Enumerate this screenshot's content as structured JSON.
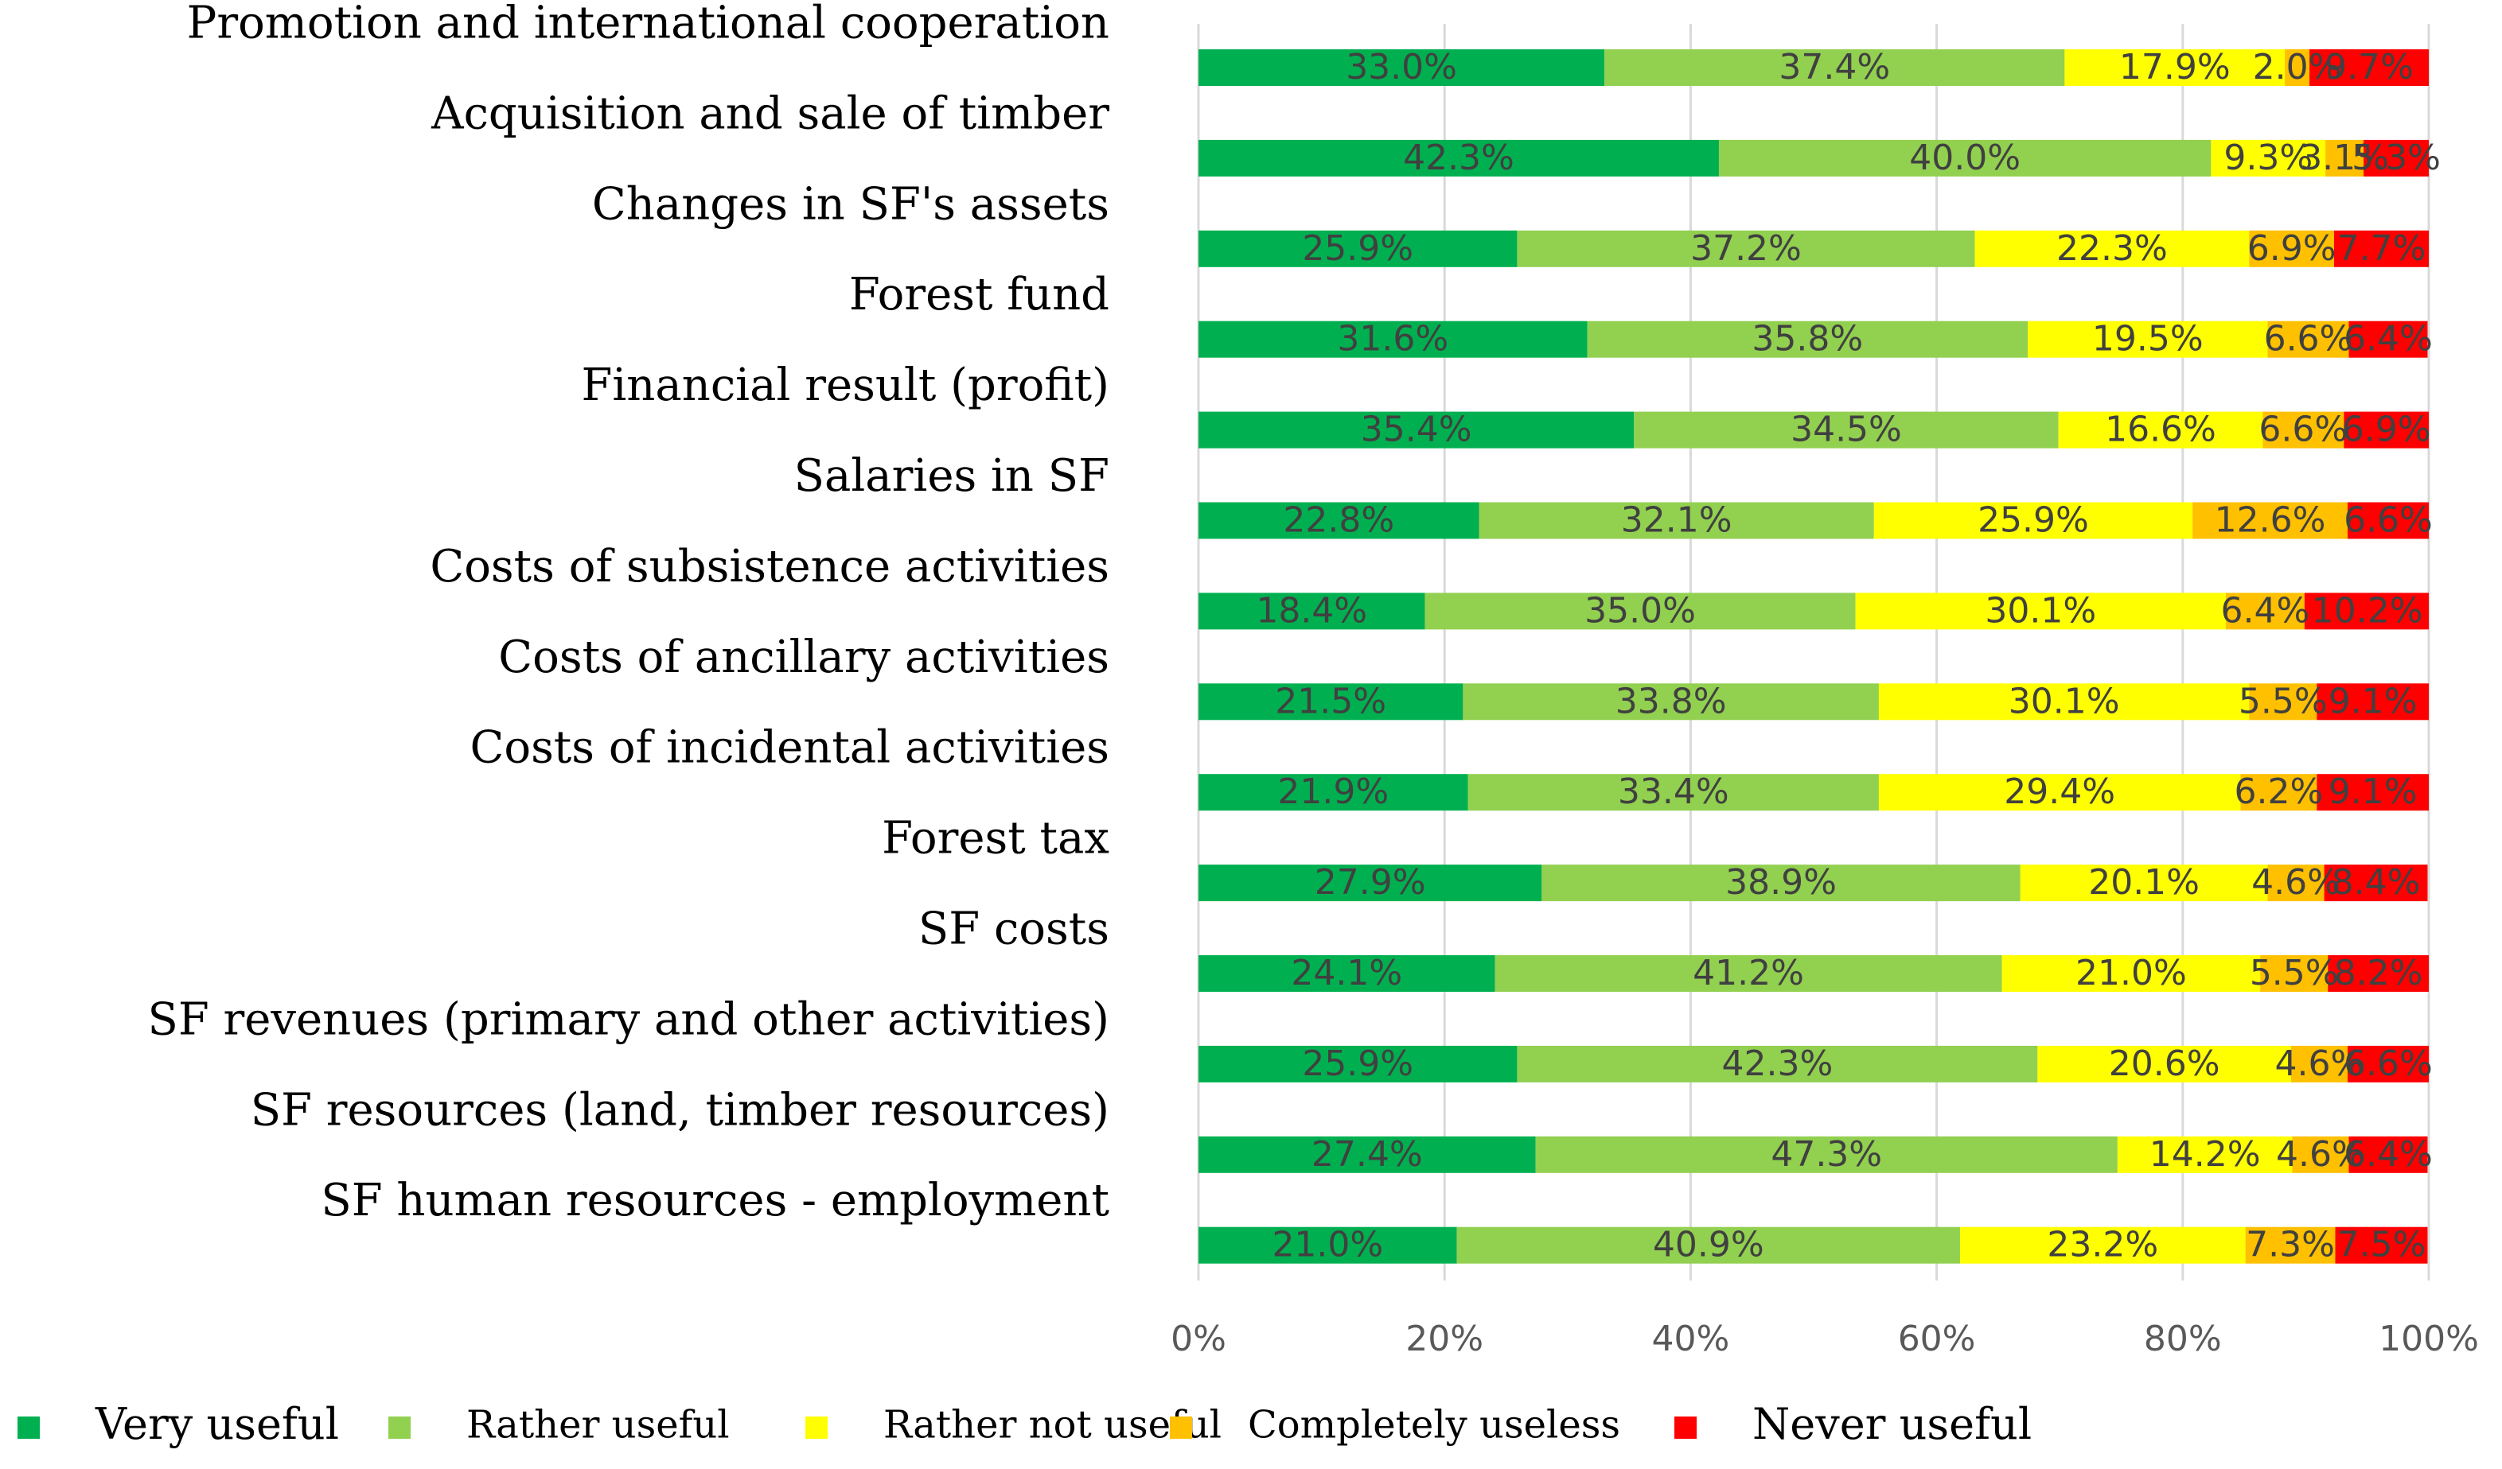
{
  "chart_data": {
    "type": "bar",
    "orientation": "horizontal",
    "stacked": "percent",
    "title": "",
    "xlabel": "",
    "ylabel": "",
    "xlim": [
      0,
      100
    ],
    "x_ticks": [
      "0%",
      "20%",
      "40%",
      "60%",
      "80%",
      "100%"
    ],
    "grid": "vertical",
    "legend_position": "bottom",
    "categories": [
      "Promotion and international cooperation",
      "Acquisition and sale of timber",
      "Changes in SF's assets",
      "Forest fund",
      "Financial result (profit)",
      "Salaries in SF",
      "Costs of subsistence activities",
      "Costs of ancillary activities",
      "Costs of incidental activities",
      "Forest tax",
      "SF costs",
      "SF revenues (primary and other activities)",
      "SF resources (land, timber resources)",
      "SF human resources - employment"
    ],
    "series": [
      {
        "name": "Very useful",
        "color": "#00b050",
        "values": [
          33.0,
          42.3,
          25.9,
          31.6,
          35.4,
          22.8,
          18.4,
          21.5,
          21.9,
          27.9,
          24.1,
          25.9,
          27.4,
          21.0
        ],
        "labels": [
          "33.0%",
          "42.3%",
          "25.9%",
          "31.6%",
          "35.4%",
          "22.8%",
          "18.4%",
          "21.5%",
          "21.9%",
          "27.9%",
          "24.1%",
          "25.9%",
          "27.4%",
          "21.0%"
        ]
      },
      {
        "name": "Rather useful",
        "color": "#92d050",
        "values": [
          37.4,
          40.0,
          37.2,
          35.8,
          34.5,
          32.1,
          35.0,
          33.8,
          33.4,
          38.9,
          41.2,
          42.3,
          47.3,
          40.9
        ],
        "labels": [
          "37.4%",
          "40.0%",
          "37.2%",
          "35.8%",
          "34.5%",
          "32.1%",
          "35.0%",
          "33.8%",
          "33.4%",
          "38.9%",
          "41.2%",
          "42.3%",
          "47.3%",
          "40.9%"
        ]
      },
      {
        "name": "Rather not useful",
        "color": "#ffff00",
        "values": [
          17.9,
          9.3,
          22.3,
          19.5,
          16.6,
          25.9,
          30.1,
          30.1,
          29.4,
          20.1,
          21.0,
          20.6,
          14.2,
          23.2
        ],
        "labels": [
          "17.9%",
          "9.3%",
          "22.3%",
          "19.5%",
          "16.6%",
          "25.9%",
          "30.1%",
          "30.1%",
          "29.4%",
          "20.1%",
          "21.0%",
          "20.6%",
          "14.2%",
          "23.2%"
        ]
      },
      {
        "name": "Completely useless",
        "color": "#ffc000",
        "values": [
          2.0,
          3.1,
          6.9,
          6.6,
          6.6,
          12.6,
          6.4,
          5.5,
          6.2,
          4.6,
          5.5,
          4.6,
          4.6,
          7.3
        ],
        "labels": [
          "2.0%",
          "3.1%",
          "6.9%",
          "6.6%",
          "6.6%",
          "12.6%",
          "6.4%",
          "5.5%",
          "6.2%",
          "4.6%",
          "5.5%",
          "4.6%",
          "4.6%",
          "7.3%"
        ]
      },
      {
        "name": "Never useful",
        "color": "#ff0000",
        "values": [
          9.7,
          5.3,
          7.7,
          6.4,
          6.9,
          6.6,
          10.2,
          9.1,
          9.1,
          8.4,
          8.2,
          6.6,
          6.4,
          7.5
        ],
        "labels": [
          "9.7%",
          "5.3%",
          "7.7%",
          "6.4%",
          "6.9%",
          "6.6%",
          "10.2%",
          "9.1%",
          "9.1%",
          "8.4%",
          "8.2%",
          "6.6%",
          "6.4%",
          "7.5%"
        ]
      }
    ]
  }
}
